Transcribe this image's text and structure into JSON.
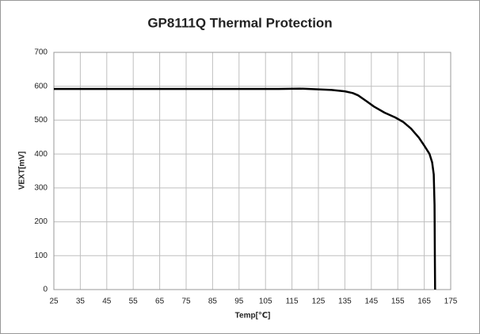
{
  "chart_data": {
    "type": "line",
    "title": "GP8111Q Thermal Protection",
    "xlabel": "Temp[℃]",
    "ylabel": "VEXT[mV]",
    "x": [
      25,
      50,
      75,
      100,
      110,
      118,
      125,
      130,
      135,
      138,
      140,
      143,
      146,
      150,
      154,
      157,
      160,
      163,
      165,
      167,
      168,
      168.6,
      168.9,
      169,
      169.1
    ],
    "series": [
      {
        "name": "VEXT",
        "color": "#000000",
        "values": [
          592,
          592,
          592,
          592,
          592,
          593,
          591,
          589,
          585,
          580,
          573,
          557,
          540,
          522,
          508,
          495,
          475,
          448,
          425,
          400,
          375,
          340,
          250,
          100,
          0
        ]
      }
    ],
    "xlim": [
      25,
      175
    ],
    "xticks": [
      25,
      35,
      45,
      55,
      65,
      75,
      85,
      95,
      105,
      115,
      125,
      135,
      145,
      155,
      165,
      175
    ],
    "ylim": [
      0,
      700
    ],
    "yticks": [
      0,
      100,
      200,
      300,
      400,
      500,
      600,
      700
    ],
    "grid": true
  }
}
